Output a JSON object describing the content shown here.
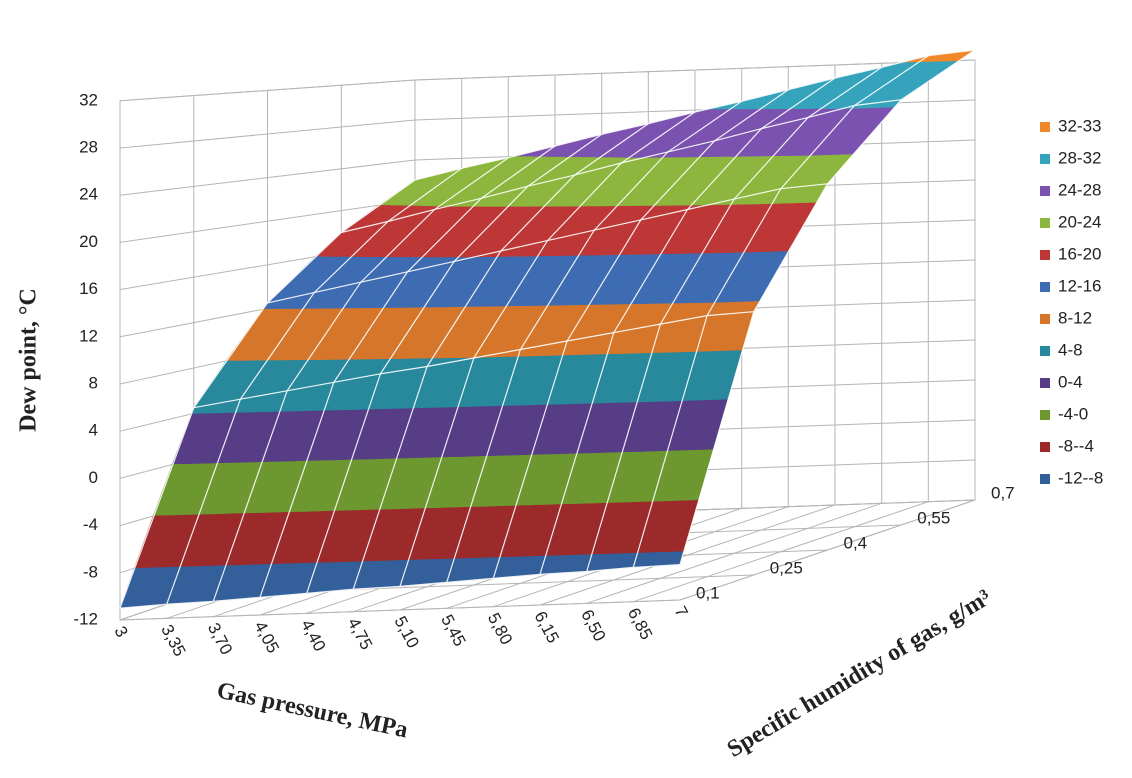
{
  "chart_data": {
    "type": "surface",
    "z_axis_title": "Dew point, °C",
    "x_axis_title": "Gas pressure, MPa",
    "y_axis_title": "Specific humidity of gas, g/m³",
    "x": [
      "3",
      "3,35",
      "3,70",
      "4,05",
      "4,40",
      "4,75",
      "5,10",
      "5,45",
      "5,80",
      "6,15",
      "6,50",
      "6,85",
      "7"
    ],
    "y": [
      "0,1",
      "0,25",
      "0,4",
      "0,55",
      "0,7"
    ],
    "z": [
      [
        -11,
        -10.8,
        -10.7,
        -10.5,
        -10.3,
        -10.1,
        -10,
        -9.8,
        -9.6,
        -9.4,
        -9.3,
        -9.1,
        -9
      ],
      [
        4.5,
        5.1,
        5.7,
        6.3,
        6.9,
        7.4,
        8.0,
        8.6,
        9.2,
        9.8,
        10.4,
        11.0,
        11.2
      ],
      [
        12.5,
        13.3,
        14.1,
        14.9,
        15.7,
        16.5,
        17.3,
        18.1,
        18.9,
        19.7,
        20.5,
        21.3,
        21.6
      ],
      [
        17.9,
        18.8,
        19.8,
        20.7,
        21.7,
        22.6,
        23.6,
        24.5,
        25.4,
        26.4,
        27.3,
        28.3,
        28.7
      ],
      [
        22,
        23,
        23.9,
        24.9,
        25.9,
        26.8,
        27.8,
        28.7,
        29.7,
        30.7,
        31.6,
        32.6,
        33
      ]
    ],
    "zlim": [
      -12,
      32
    ],
    "zticks": [
      -12,
      -8,
      -4,
      0,
      4,
      8,
      12,
      16,
      20,
      24,
      28,
      32
    ],
    "grid": true,
    "legend": "right",
    "bands": [
      {
        "name": "32-33",
        "from": 32,
        "to": 33,
        "color": "#f0882a"
      },
      {
        "name": "28-32",
        "from": 28,
        "to": 32,
        "color": "#34a3bb"
      },
      {
        "name": "24-28",
        "from": 24,
        "to": 28,
        "color": "#7b52b0"
      },
      {
        "name": "20-24",
        "from": 20,
        "to": 24,
        "color": "#8cb63d"
      },
      {
        "name": "16-20",
        "from": 16,
        "to": 20,
        "color": "#bd3736"
      },
      {
        "name": "12-16",
        "from": 12,
        "to": 16,
        "color": "#3d6cb2"
      },
      {
        "name": "8-12",
        "from": 8,
        "to": 12,
        "color": "#d5762a"
      },
      {
        "name": "4-8",
        "from": 4,
        "to": 8,
        "color": "#28889c"
      },
      {
        "name": "0-4",
        "from": 0,
        "to": 4,
        "color": "#563d86"
      },
      {
        "name": "-4-0",
        "from": -4,
        "to": 0,
        "color": "#6c982f"
      },
      {
        "name": "-8--4",
        "from": -8,
        "to": -4,
        "color": "#9c2a2a"
      },
      {
        "name": "-12--8",
        "from": -12,
        "to": -8,
        "color": "#33609b"
      }
    ]
  }
}
